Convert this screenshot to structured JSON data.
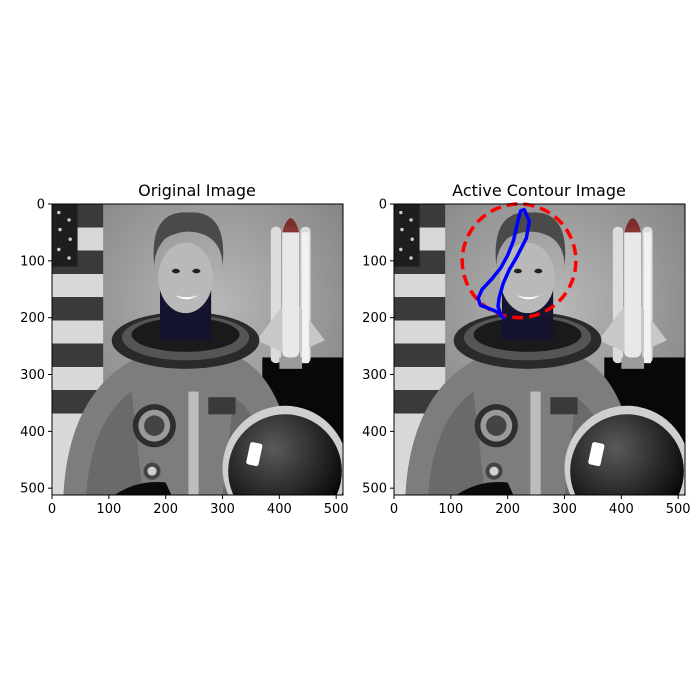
{
  "chart_data": [
    {
      "type": "image",
      "title": "Original Image",
      "x_ticks": [
        0,
        100,
        200,
        300,
        400,
        500
      ],
      "y_ticks": [
        0,
        100,
        200,
        300,
        400,
        500
      ],
      "xlim": [
        0,
        512
      ],
      "ylim": [
        512,
        0
      ],
      "image_size": [
        512,
        512
      ],
      "grid": false
    },
    {
      "type": "image",
      "title": "Active Contour Image",
      "x_ticks": [
        0,
        100,
        200,
        300,
        400,
        500
      ],
      "y_ticks": [
        0,
        100,
        200,
        300,
        400,
        500
      ],
      "xlim": [
        0,
        512
      ],
      "ylim": [
        512,
        0
      ],
      "image_size": [
        512,
        512
      ],
      "grid": false,
      "series": [
        {
          "style": "dashed",
          "color": "#ff0000",
          "shape": "circle",
          "center": [
            220,
            100
          ],
          "radius": 100
        },
        {
          "style": "solid",
          "color": "#0000ff",
          "shape": "snake",
          "points": [
            [
              229,
              10
            ],
            [
              238,
              30
            ],
            [
              233,
              60
            ],
            [
              215,
              95
            ],
            [
              203,
              115
            ],
            [
              192,
              140
            ],
            [
              185,
              165
            ],
            [
              183,
              180
            ],
            [
              188,
              195
            ],
            [
              193,
              200
            ],
            [
              182,
              190
            ],
            [
              165,
              183
            ],
            [
              152,
              178
            ],
            [
              148,
              166
            ],
            [
              155,
              150
            ],
            [
              172,
              132
            ],
            [
              188,
              112
            ],
            [
              200,
              90
            ],
            [
              210,
              65
            ],
            [
              218,
              30
            ],
            [
              223,
              12
            ],
            [
              229,
              10
            ]
          ]
        }
      ]
    }
  ]
}
